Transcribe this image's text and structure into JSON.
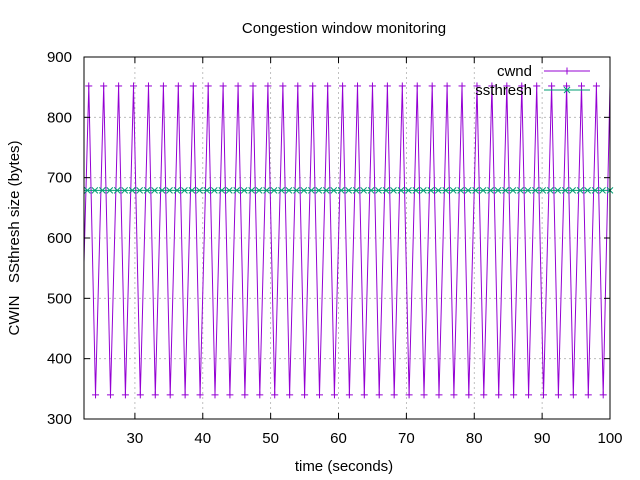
{
  "chart_data": {
    "type": "line",
    "title": "Congestion window monitoring",
    "xlabel": "time (seconds)",
    "ylabel": "CWIN   SSthresh size (bytes)",
    "xlim": [
      22.5,
      100
    ],
    "ylim": [
      300,
      900
    ],
    "x_ticks": [
      30,
      40,
      50,
      60,
      70,
      80,
      90,
      100
    ],
    "y_ticks": [
      300,
      400,
      500,
      600,
      700,
      800,
      900
    ],
    "grid": true,
    "legend_position": "top-right",
    "series": [
      {
        "name": "cwnd",
        "color": "#9400d3",
        "marker": "plus",
        "period": 2.2,
        "min": 340,
        "max": 852,
        "first_peak": 23.2,
        "first_trough": 24.2
      },
      {
        "name": "ssthresh",
        "color": "#009e73",
        "marker": "cross",
        "value": 679,
        "x_start": 22.5,
        "x_end": 100,
        "marker_step": 1.1
      }
    ]
  }
}
